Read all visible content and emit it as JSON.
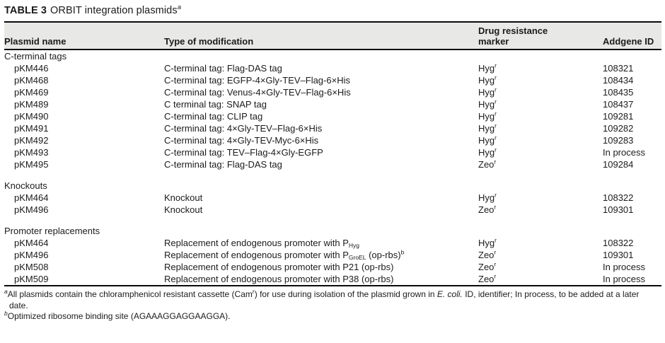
{
  "colors": {
    "header_bg": "#e8e8e6",
    "rule": "#0a0a0a",
    "text": "#1b1b1b"
  },
  "title": {
    "label": "TABLE 3",
    "text": "ORBIT integration plasmids",
    "footnote_mark": "a"
  },
  "table": {
    "columns": [
      "Plasmid name",
      "Type of modification",
      "Drug resistance marker",
      "Addgene ID"
    ],
    "sections": [
      {
        "name": "C-terminal tags",
        "rows": [
          {
            "plasmid": "pKM446",
            "modification": "C-terminal tag: Flag-DAS tag",
            "marker": "Hyg^{r}",
            "addgene": "108321"
          },
          {
            "plasmid": "pKM468",
            "modification": "C-terminal tag: EGFP-4×Gly-TEV–Flag-6×His",
            "marker": "Hyg^{r}",
            "addgene": "108434"
          },
          {
            "plasmid": "pKM469",
            "modification": "C-terminal tag: Venus-4×Gly-TEV–Flag-6×His",
            "marker": "Hyg^{r}",
            "addgene": "108435"
          },
          {
            "plasmid": "pKM489",
            "modification": "C terminal tag: SNAP tag",
            "marker": "Hyg^{r}",
            "addgene": "108437"
          },
          {
            "plasmid": "pKM490",
            "modification": "C-terminal tag: CLIP tag",
            "marker": "Hyg^{r}",
            "addgene": "109281"
          },
          {
            "plasmid": "pKM491",
            "modification": "C-terminal tag: 4×Gly-TEV–Flag-6×His",
            "marker": "Hyg^{r}",
            "addgene": "109282"
          },
          {
            "plasmid": "pKM492",
            "modification": "C-terminal tag: 4×Gly-TEV-Myc-6×His",
            "marker": "Hyg^{r}",
            "addgene": "109283"
          },
          {
            "plasmid": "pKM493",
            "modification": "C-terminal tag: TEV–Flag-4×Gly-EGFP",
            "marker": "Hyg^{r}",
            "addgene": "In process"
          },
          {
            "plasmid": "pKM495",
            "modification": "C-terminal tag: Flag-DAS tag",
            "marker": "Zeo^{r}",
            "addgene": "109284"
          }
        ]
      },
      {
        "name": "Knockouts",
        "rows": [
          {
            "plasmid": "pKM464",
            "modification": "Knockout",
            "marker": "Hyg^{r}",
            "addgene": "108322"
          },
          {
            "plasmid": "pKM496",
            "modification": "Knockout",
            "marker": "Zeo^{r}",
            "addgene": "109301"
          }
        ]
      },
      {
        "name": "Promoter replacements",
        "rows": [
          {
            "plasmid": "pKM464",
            "modification": "Replacement of endogenous promoter with P_{Hyg}",
            "marker": "Hyg^{r}",
            "addgene": "108322"
          },
          {
            "plasmid": "pKM496",
            "modification": "Replacement of endogenous promoter with P_{GroEL} (op-rbs)^{b}",
            "marker": "Zeo^{r}",
            "addgene": "109301"
          },
          {
            "plasmid": "pKM508",
            "modification": "Replacement of endogenous promoter with P21 (op-rbs)",
            "marker": "Zeo^{r}",
            "addgene": "In process"
          },
          {
            "plasmid": "pKM509",
            "modification": "Replacement of endogenous promoter with P38 (op-rbs)",
            "marker": "Zeo^{r}",
            "addgene": "In process"
          }
        ]
      }
    ]
  },
  "footnotes": [
    "^{a}All plasmids contain the chloramphenicol resistant cassette (Cam^{r}) for use during isolation of the plasmid grown in /{E. coli.} ID, identifier; In process, to be added at a later date.",
    "^{b}Optimized ribosome binding site (AGAAAGGAGGAAGGA)."
  ]
}
